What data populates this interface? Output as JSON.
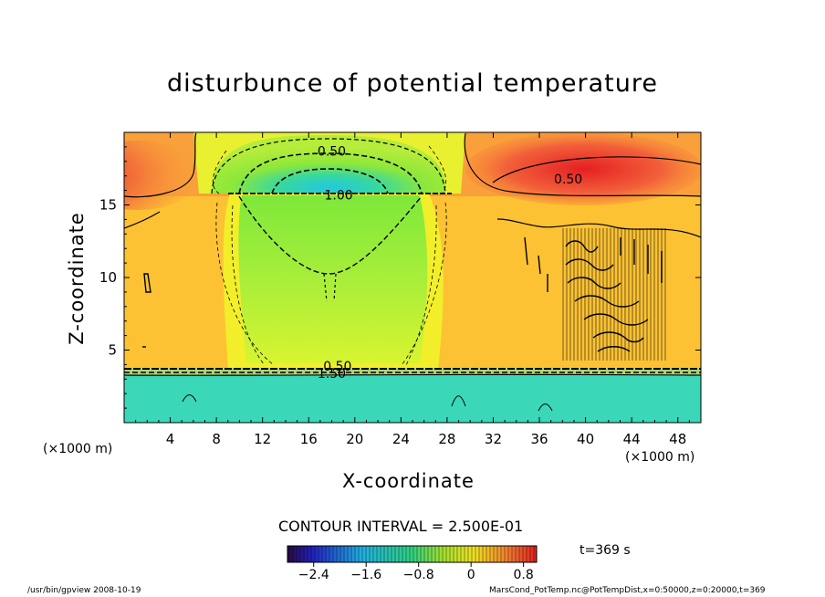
{
  "chart_data": {
    "type": "heatmap",
    "title": "disturbunce of potential temperature",
    "xlabel": "X-coordinate",
    "ylabel": "Z-coordinate",
    "x_unit_label": "(×1000 m)",
    "x_ticks": [
      4,
      8,
      12,
      16,
      20,
      24,
      28,
      32,
      36,
      40,
      44,
      48
    ],
    "y_ticks": [
      5,
      10,
      15
    ],
    "xlim": [
      0,
      50
    ],
    "ylim": [
      0,
      20
    ],
    "contour_interval_text": "CONTOUR INTERVAL = 2.500E-01",
    "contour_labels": [
      {
        "text": "0.50",
        "x": 18.0,
        "z": 18.7
      },
      {
        "text": "1.00",
        "x": 18.6,
        "z": 15.7
      },
      {
        "text": "0.50",
        "x": 38.5,
        "z": 16.8
      },
      {
        "text": "0.50",
        "x": 18.5,
        "z": 3.9
      },
      {
        "text": "1.50",
        "x": 18.0,
        "z": 3.4
      }
    ],
    "colorbar": {
      "range": [
        -2.8,
        1.0
      ],
      "ticks": [
        -2.4,
        -1.6,
        -0.8,
        0,
        0.8
      ],
      "tick_labels": [
        "−2.4",
        "−1.6",
        "−0.8",
        "0",
        "0.8"
      ]
    },
    "annotations": {
      "time": "t=369 s",
      "footer_left": "/usr/bin/gpview   2008-10-19",
      "footer_right": "MarsCond_PotTemp.nc@PotTempDist,x=0:50000,z=0:20000,t=369"
    },
    "field_regions": [
      {
        "name": "lower layer",
        "value": -1.5,
        "x": [
          0,
          50
        ],
        "z": [
          0,
          3.8
        ]
      },
      {
        "name": "background",
        "value": 0.25,
        "x": [
          0,
          50
        ],
        "z": [
          3.8,
          20
        ]
      },
      {
        "name": "central plume",
        "value": -0.5,
        "x": [
          8,
          28
        ],
        "z": [
          3.8,
          16
        ]
      },
      {
        "name": "cold dome",
        "value": -1.2,
        "x": [
          10,
          26
        ],
        "z": [
          15.8,
          20
        ]
      },
      {
        "name": "warm cell left",
        "value": 0.8,
        "x": [
          0,
          5
        ],
        "z": [
          15.5,
          20
        ]
      },
      {
        "name": "warm cell right",
        "value": 0.8,
        "x": [
          32,
          50
        ],
        "z": [
          15.5,
          20
        ]
      }
    ]
  }
}
